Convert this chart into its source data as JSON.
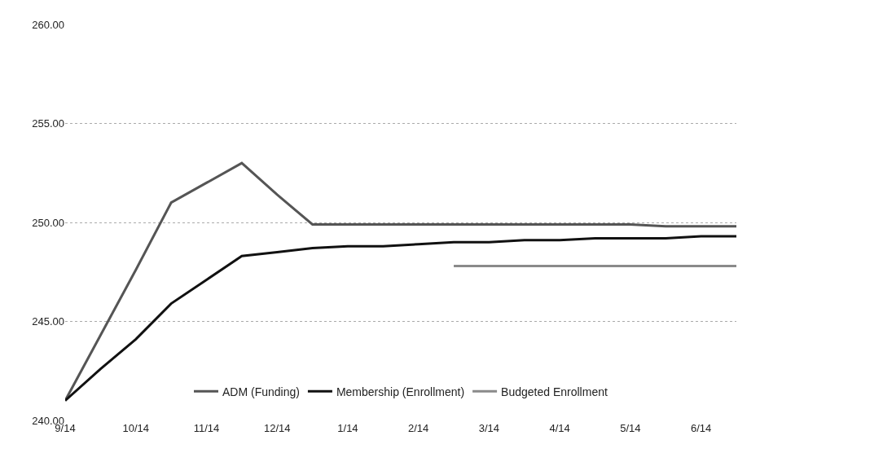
{
  "chart_data": {
    "type": "line",
    "categories": [
      "9/14",
      null,
      "10/14",
      null,
      "11/14",
      null,
      "12/14",
      null,
      "1/14",
      null,
      "2/14",
      null,
      "3/14",
      null,
      "4/14",
      null,
      "5/14",
      null,
      "6/14",
      null
    ],
    "series": [
      {
        "name": "ADM (Funding)",
        "color": "#555555",
        "values": [
          241,
          244.3,
          247.6,
          251,
          252,
          253,
          251.4,
          249.9,
          249.9,
          249.9,
          249.9,
          249.9,
          249.9,
          249.9,
          249.9,
          249.9,
          249.9,
          249.8,
          249.8,
          249.8
        ]
      },
      {
        "name": "Membership (Enrollment)",
        "color": "#111111",
        "values": [
          241,
          242.6,
          244.1,
          245.9,
          247.1,
          248.3,
          248.5,
          248.7,
          248.8,
          248.8,
          248.9,
          249,
          249,
          249.1,
          249.1,
          249.2,
          249.2,
          249.2,
          249.3,
          249.3
        ]
      },
      {
        "name": "Budgeted Enrollment",
        "color": "#8a8a8a",
        "values": [
          null,
          null,
          null,
          null,
          null,
          null,
          null,
          null,
          null,
          null,
          null,
          247.8,
          247.8,
          247.8,
          247.8,
          247.8,
          247.8,
          247.8,
          247.8,
          247.8
        ]
      }
    ],
    "ylim": [
      240,
      260
    ],
    "yticks": [
      {
        "value": 240,
        "label": "240.00"
      },
      {
        "value": 245,
        "label": "245.00"
      },
      {
        "value": 250,
        "label": "250.00"
      },
      {
        "value": 255,
        "label": "255.00"
      },
      {
        "value": 260,
        "label": "260.00"
      }
    ],
    "grid": "y",
    "legend": "bottom",
    "marker": "none",
    "line_style": "solid"
  }
}
